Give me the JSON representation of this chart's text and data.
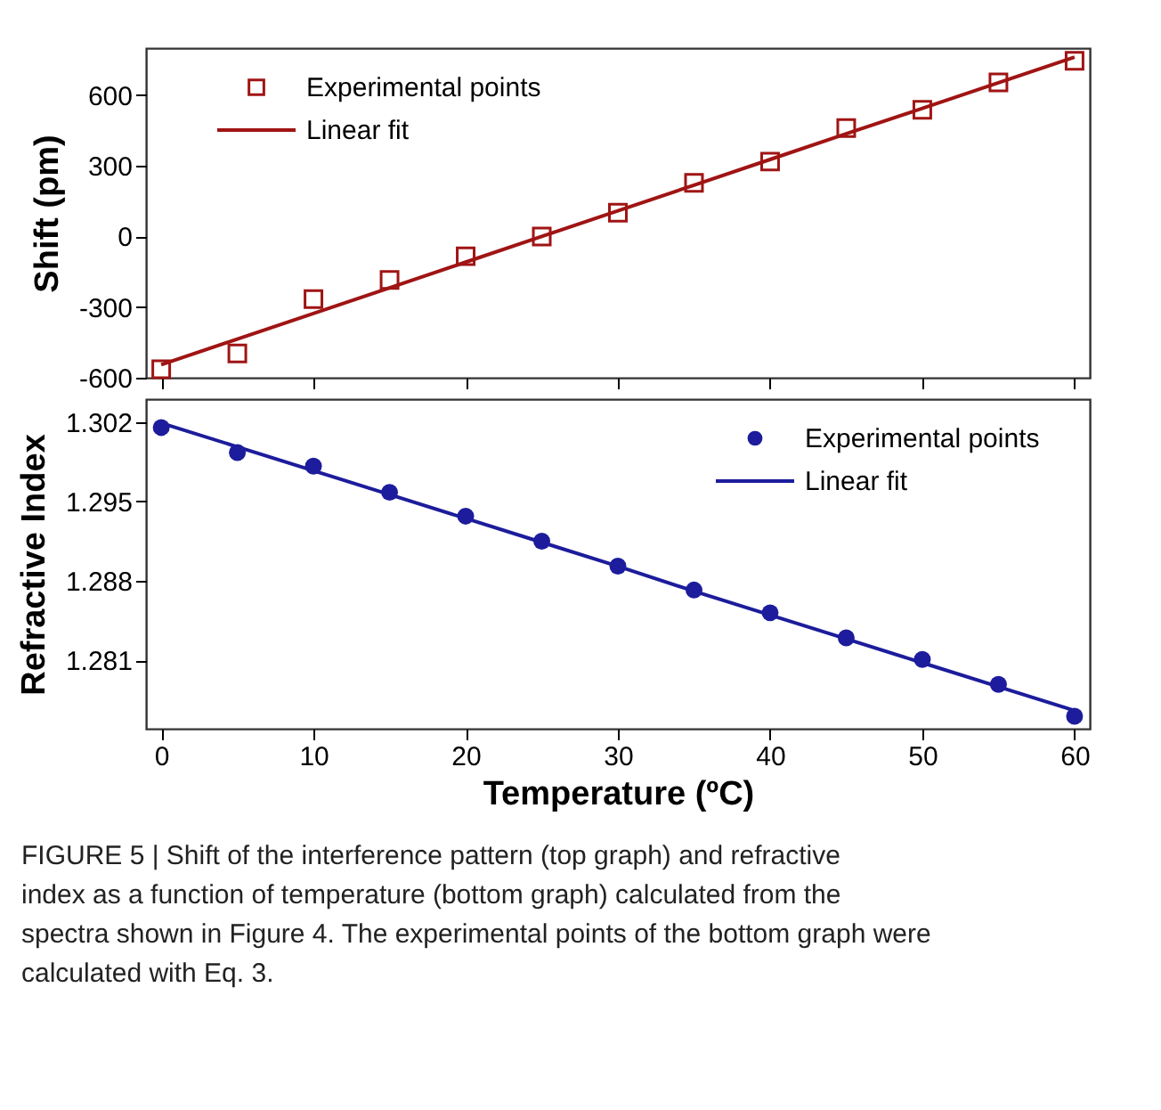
{
  "chart_data": [
    {
      "type": "scatter",
      "ylabel": "Shift (pm)",
      "xlim": [
        -1,
        61
      ],
      "xticks": [
        0,
        10,
        20,
        30,
        40,
        50,
        60
      ],
      "ylim": [
        -600,
        800
      ],
      "yticks": [
        -600,
        -300,
        0,
        300,
        600
      ],
      "tick_labels": "y",
      "legend": "top left",
      "grid": false,
      "x": [
        0,
        5,
        10,
        15,
        20,
        25,
        30,
        35,
        40,
        45,
        50,
        55,
        60
      ],
      "series": [
        {
          "name": "Experimental points",
          "marker": "square",
          "color": "#a01414",
          "values": [
            -564,
            -497,
            -266,
            -185,
            -84,
            0,
            101,
            228,
            318,
            460,
            538,
            654,
            746
          ]
        },
        {
          "name": "Linear fit",
          "type": "line",
          "line_style": "solid",
          "color": "#a01414",
          "values": [
            -545,
            -436,
            -327,
            -218,
            -109,
            0,
            109,
            218,
            327,
            436,
            544,
            653,
            762
          ]
        }
      ]
    },
    {
      "type": "scatter",
      "xlabel": "Temperature (ºC)",
      "ylabel": "Refractive Index",
      "xlim": [
        -1,
        61
      ],
      "xticks": [
        0,
        10,
        20,
        30,
        40,
        50,
        60
      ],
      "ylim": [
        1.275,
        1.304
      ],
      "yticks": [
        1.281,
        1.288,
        1.295,
        1.302
      ],
      "legend": "top right",
      "grid": false,
      "x": [
        0,
        5,
        10,
        15,
        20,
        25,
        30,
        35,
        40,
        45,
        50,
        55,
        60
      ],
      "series": [
        {
          "name": "Experimental points",
          "marker": "circle",
          "color": "#1c1c9c",
          "values": [
            1.3015,
            1.2993,
            1.2981,
            1.2958,
            1.2937,
            1.2915,
            1.2893,
            1.2872,
            1.2852,
            1.283,
            1.2811,
            1.2789,
            1.2761
          ]
        },
        {
          "name": "Linear fit",
          "type": "line",
          "line_style": "solid",
          "color": "#1c1c9c",
          "values": [
            1.3019,
            1.2998,
            1.2977,
            1.2956,
            1.2935,
            1.2914,
            1.2893,
            1.2871,
            1.285,
            1.2829,
            1.2808,
            1.2787,
            1.2766
          ]
        }
      ],
      "annotations": [
        "FIGURE 5 | Shift of the interference pattern (top graph) and refractive index as a function of temperature (bottom graph) calculated from the spectra shown in Figure 4. The experimental points of the bottom graph were calculated with Eq. 3."
      ]
    }
  ]
}
